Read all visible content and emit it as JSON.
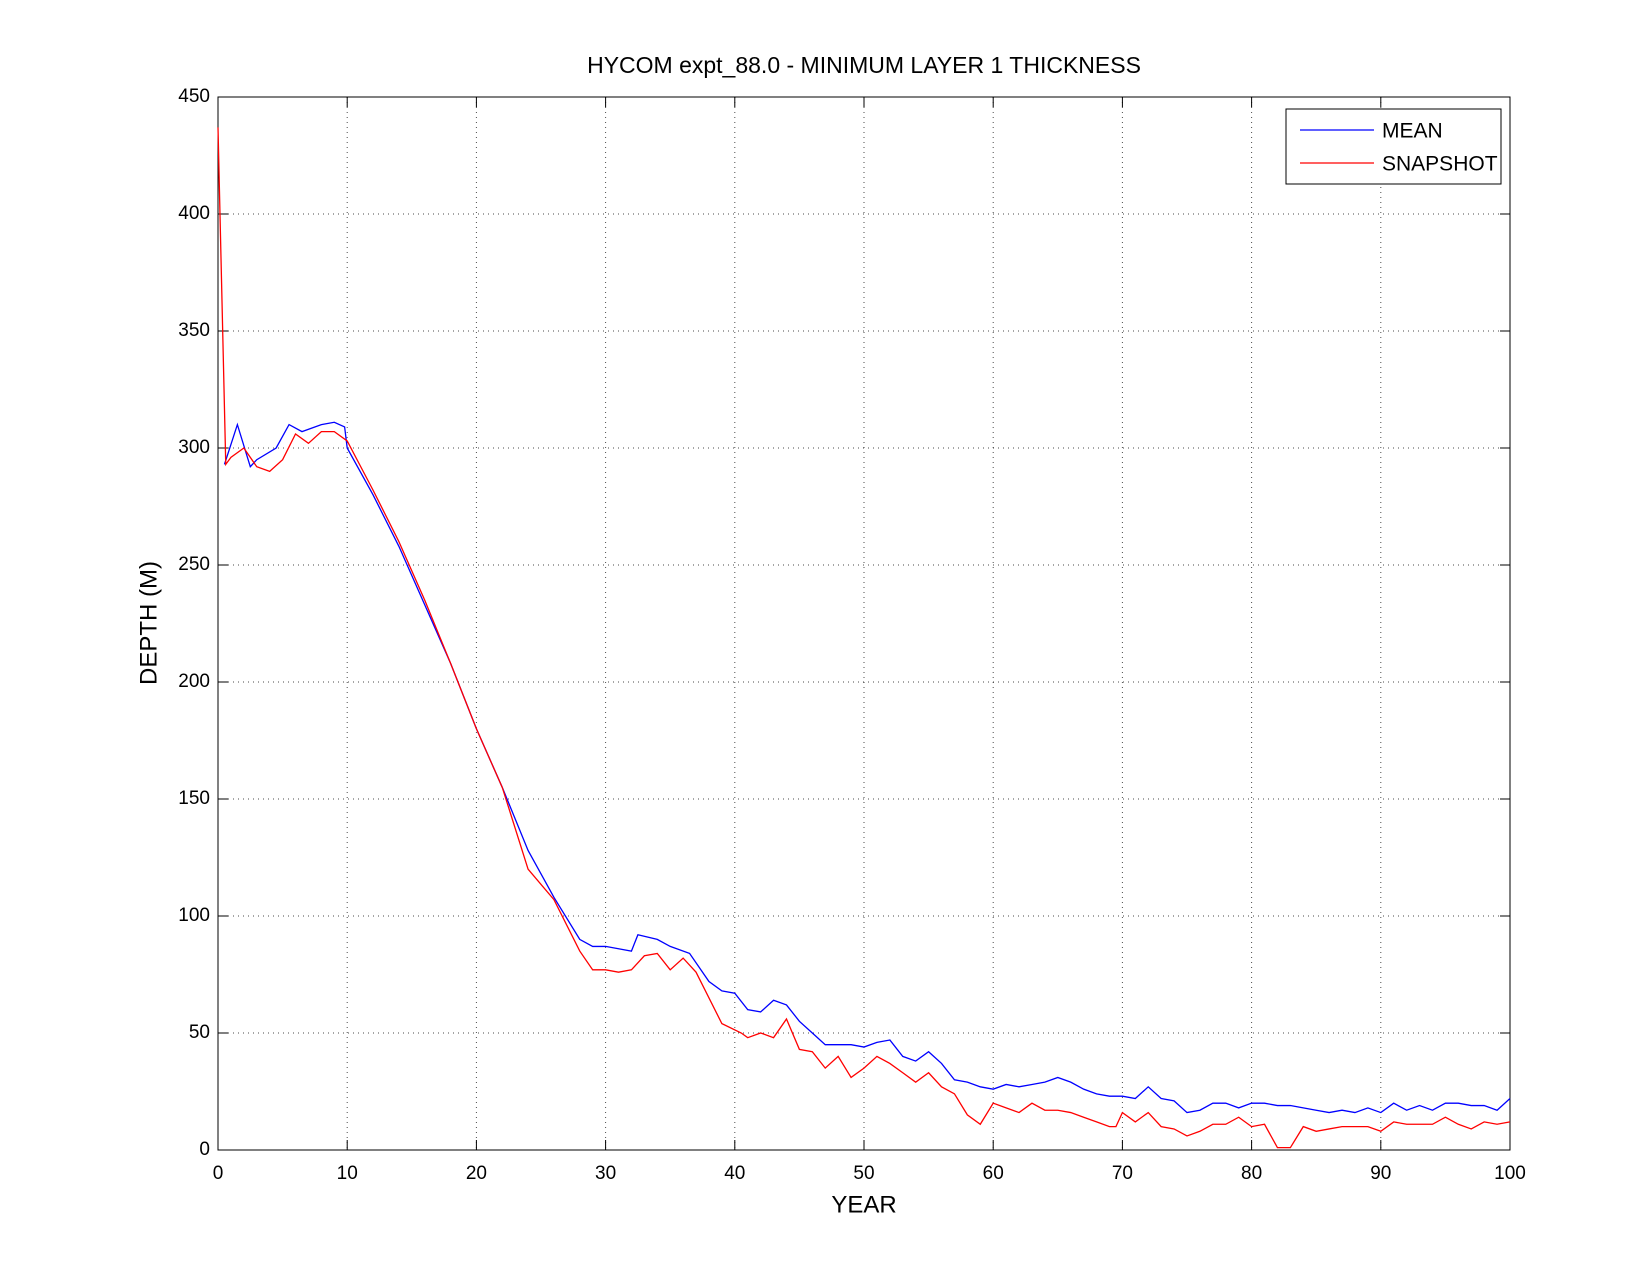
{
  "chart_data": {
    "type": "line",
    "title": "HYCOM expt_88.0 - MINIMUM LAYER 1 THICKNESS",
    "x_label": "YEAR",
    "y_label": "DEPTH (M)",
    "xlim": [
      0,
      100
    ],
    "xticks": [
      0,
      10,
      20,
      30,
      40,
      50,
      60,
      70,
      80,
      90,
      100
    ],
    "ylim": [
      0,
      450
    ],
    "yticks": [
      0,
      50,
      100,
      150,
      200,
      250,
      300,
      350,
      400,
      450
    ],
    "grid": true,
    "legend_position": "upper right",
    "series": [
      {
        "name": "MEAN",
        "color": "#0000ff",
        "x": [
          0.5,
          1.5,
          2.5,
          3,
          4.5,
          5.5,
          6.5,
          8,
          9,
          9.8,
          10,
          12,
          14,
          16,
          18,
          20,
          22,
          24,
          26,
          28,
          29,
          30,
          31,
          32,
          32.5,
          34,
          35,
          36.5,
          38,
          39,
          40,
          41,
          42,
          43,
          44,
          45,
          46,
          47,
          48,
          49,
          50,
          51,
          52,
          53,
          54,
          55,
          56,
          57,
          58,
          59,
          60,
          61,
          62,
          63,
          64,
          65,
          66,
          67,
          68,
          69,
          70,
          71,
          72,
          73,
          74,
          75,
          76,
          77,
          78,
          79,
          80,
          81,
          82,
          83,
          84,
          85,
          86,
          87,
          88,
          89,
          90,
          91,
          92,
          93,
          94,
          95,
          96,
          97,
          98,
          99,
          100
        ],
        "values": [
          293,
          310,
          292,
          295,
          300,
          310,
          307,
          310,
          311,
          309,
          300,
          280,
          258,
          233,
          208,
          180,
          155,
          128,
          108,
          90,
          87,
          87,
          86,
          85,
          92,
          90,
          87,
          84,
          72,
          68,
          67,
          60,
          59,
          64,
          62,
          55,
          50,
          45,
          45,
          45,
          44,
          46,
          47,
          40,
          38,
          42,
          37,
          30,
          29,
          27,
          26,
          28,
          27,
          28,
          29,
          31,
          29,
          26,
          24,
          23,
          23,
          22,
          27,
          22,
          21,
          16,
          17,
          20,
          20,
          18,
          20,
          20,
          19,
          19,
          18,
          17,
          16,
          17,
          16,
          18,
          16,
          20,
          17,
          19,
          17,
          20,
          20,
          19,
          19,
          17,
          22
        ]
      },
      {
        "name": "SNAPSHOT",
        "color": "#ff0000",
        "x": [
          0,
          0.6,
          1,
          2,
          3,
          4,
          5,
          6,
          7,
          8,
          9,
          10,
          12,
          14,
          16,
          18,
          20,
          22,
          24,
          26,
          28,
          29,
          30,
          31,
          32,
          33,
          34,
          35,
          36,
          37,
          39,
          40.5,
          41,
          42,
          43,
          44,
          45,
          46,
          47,
          48,
          49,
          50,
          51,
          52,
          53,
          54,
          55,
          56,
          57,
          58,
          59,
          60,
          61,
          62,
          63,
          64,
          65,
          66,
          67,
          68,
          69,
          69.5,
          70,
          71,
          72,
          73,
          74,
          75,
          76,
          77,
          78,
          79,
          80,
          81,
          82,
          83,
          84,
          85,
          86,
          87,
          88,
          89,
          90,
          91,
          92,
          93,
          94,
          95,
          96,
          97,
          98,
          99,
          100
        ],
        "values": [
          437,
          293,
          296,
          300,
          292,
          290,
          295,
          306,
          302,
          307,
          307,
          303,
          282,
          260,
          235,
          208,
          180,
          155,
          120,
          107,
          85,
          77,
          77,
          76,
          77,
          83,
          84,
          77,
          82,
          76,
          54,
          50,
          48,
          50,
          48,
          56,
          43,
          42,
          35,
          40,
          31,
          35,
          40,
          37,
          33,
          29,
          33,
          27,
          24,
          15,
          11,
          20,
          18,
          16,
          20,
          17,
          17,
          16,
          14,
          12,
          10,
          10,
          16,
          12,
          16,
          10,
          9,
          6,
          8,
          11,
          11,
          14,
          10,
          11,
          1,
          1,
          10,
          8,
          9,
          10,
          10,
          10,
          8,
          12,
          11,
          11,
          11,
          14,
          11,
          9,
          12,
          11,
          12
        ]
      }
    ]
  }
}
